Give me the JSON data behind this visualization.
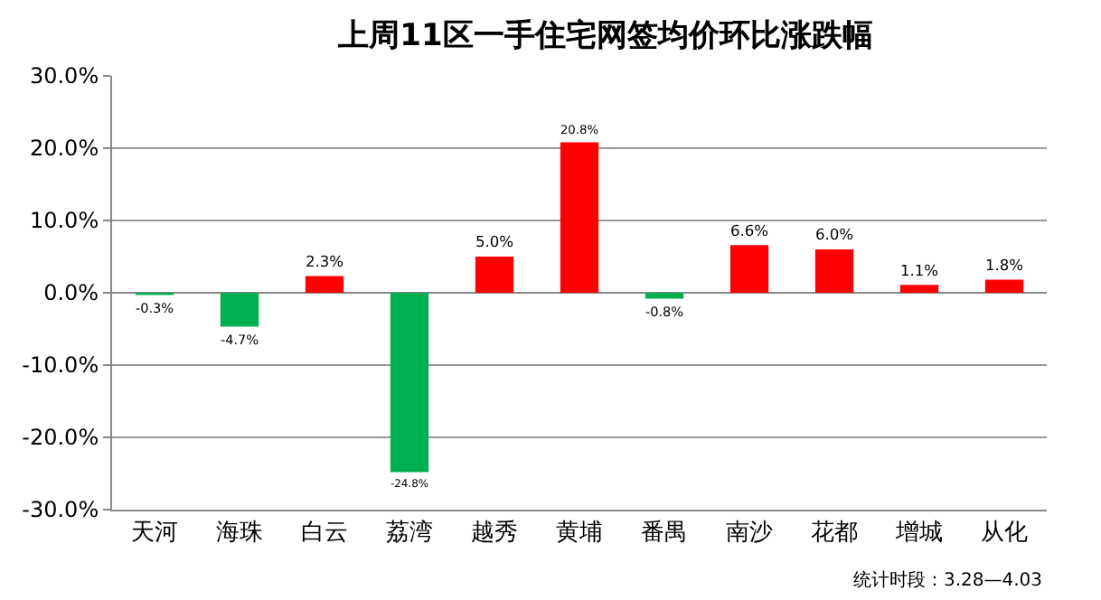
{
  "chart_data": {
    "type": "bar",
    "title": "上周11区一手住宅网签均价环比涨跌幅",
    "categories": [
      "天河",
      "海珠",
      "白云",
      "荔湾",
      "越秀",
      "黄埔",
      "番禺",
      "南沙",
      "花都",
      "增城",
      "从化"
    ],
    "values": [
      -0.3,
      -4.7,
      2.3,
      -24.8,
      5.0,
      20.8,
      -0.8,
      6.6,
      6.0,
      1.1,
      1.8
    ],
    "colors": [
      "#00b050",
      "#00b050",
      "#ff0000",
      "#00b050",
      "#ff0000",
      "#ff0000",
      "#00b050",
      "#ff0000",
      "#ff0000",
      "#ff0000",
      "#ff0000"
    ],
    "value_labels": [
      "-0.3%",
      "-4.7%",
      "2.3%",
      "-24.8%",
      "5.0%",
      "20.8%",
      "-0.8%",
      "6.6%",
      "6.0%",
      "1.1%",
      "1.8%"
    ],
    "ylim": [
      -30,
      30
    ],
    "yticks": [
      {
        "value": -30,
        "label": "-30.0%"
      },
      {
        "value": -20,
        "label": "-20.0%"
      },
      {
        "value": -10,
        "label": "-10.0%"
      },
      {
        "value": 0,
        "label": "0.0%"
      },
      {
        "value": 10,
        "label": "10.0%"
      },
      {
        "value": 20,
        "label": "20.0%"
      },
      {
        "value": 30,
        "label": "30.0%"
      }
    ],
    "grid": "y",
    "annotations": [
      "统计时段：3.28—4.03"
    ]
  }
}
